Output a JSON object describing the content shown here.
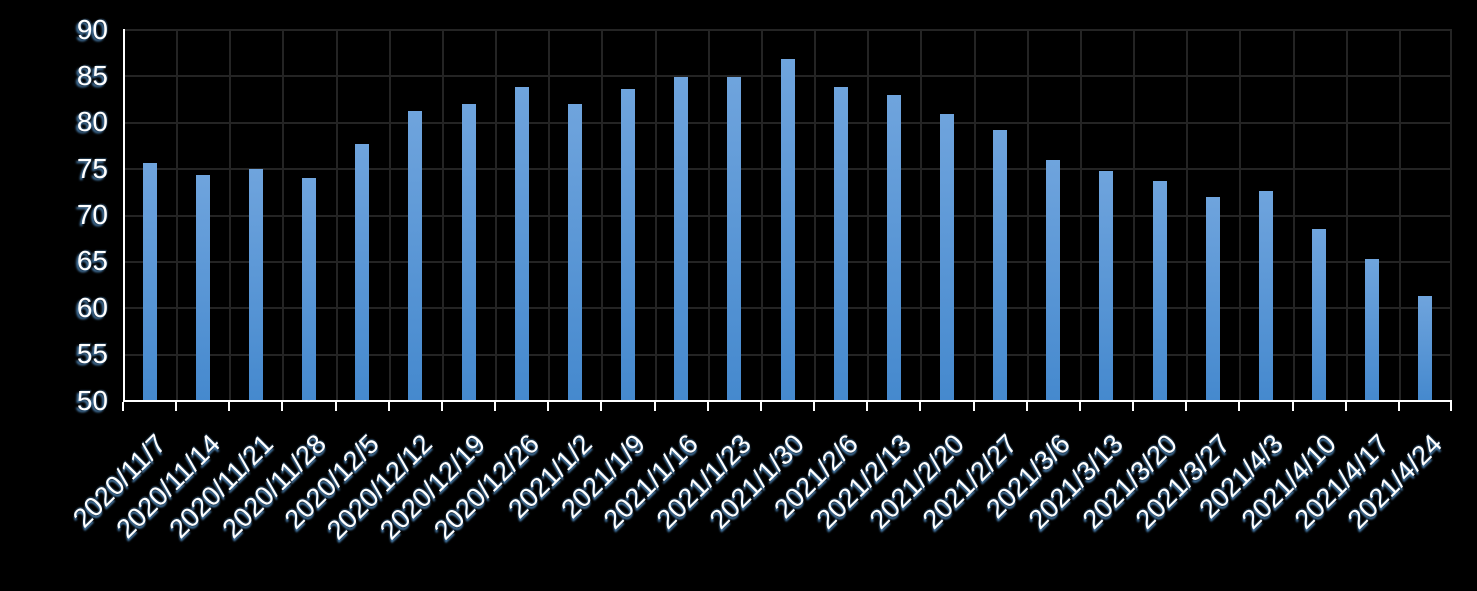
{
  "chart_data": {
    "type": "bar",
    "title": "",
    "xlabel": "",
    "ylabel": "",
    "categories": [
      "2020/11/7",
      "2020/11/14",
      "2020/11/21",
      "2020/11/28",
      "2020/12/5",
      "2020/12/12",
      "2020/12/19",
      "2020/12/26",
      "2021/1/2",
      "2021/1/9",
      "2021/1/16",
      "2021/1/23",
      "2021/1/30",
      "2021/2/6",
      "2021/2/13",
      "2021/2/20",
      "2021/2/27",
      "2021/3/6",
      "2021/3/13",
      "2021/3/20",
      "2021/3/27",
      "2021/4/3",
      "2021/4/10",
      "2021/4/17",
      "2021/4/24"
    ],
    "values": [
      75.6,
      74.3,
      74.9,
      73.9,
      77.6,
      81.2,
      81.9,
      83.7,
      81.9,
      83.5,
      84.8,
      84.8,
      86.8,
      83.7,
      82.9,
      80.8,
      79.1,
      75.9,
      74.7,
      73.6,
      71.9,
      72.5,
      68.4,
      65.2,
      61.2
    ],
    "ylim": [
      50,
      90
    ],
    "y_ticks": [
      90,
      85,
      80,
      75,
      70,
      65,
      60,
      55,
      50
    ],
    "grid": true,
    "legend_position": "none"
  },
  "colors": {
    "background": "#000000",
    "bar_gradient_top": "#6fa4dd",
    "bar_gradient_bottom": "#4589ce",
    "gridline": "#242424",
    "axis": "#ffffff",
    "label_text": "#ffffff",
    "label_glow": "#5b9bd5"
  }
}
